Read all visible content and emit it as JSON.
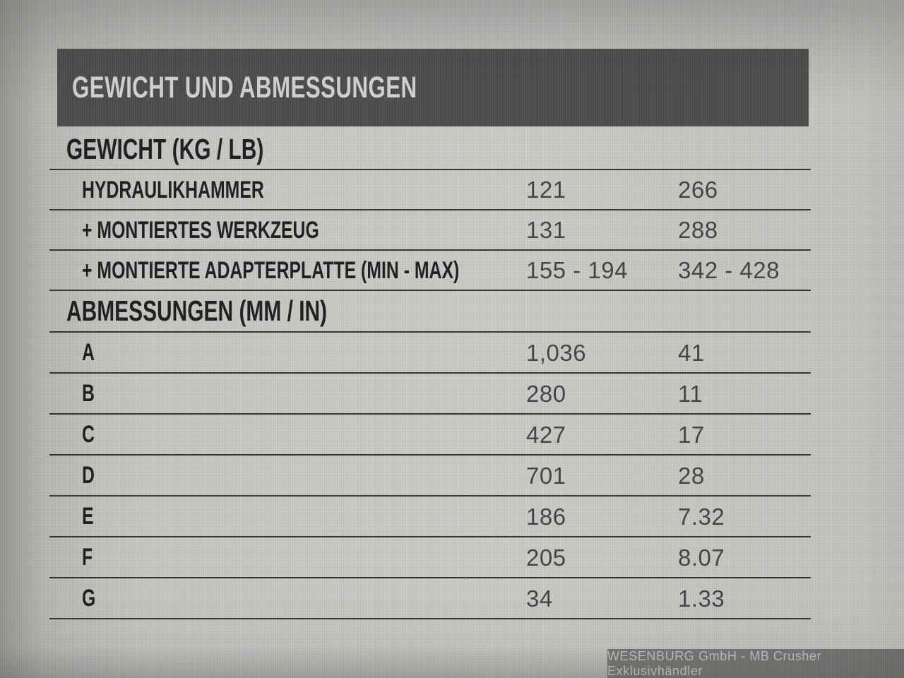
{
  "header": {
    "title": "GEWICHT UND ABMESSUNGEN"
  },
  "table": {
    "sections": [
      {
        "title": "GEWICHT (KG / LB)",
        "rows": [
          {
            "label": "HYDRAULIKHAMMER",
            "metric": "121",
            "imperial": "266"
          },
          {
            "label": "+ MONTIERTES WERKZEUG",
            "metric": "131",
            "imperial": "288"
          },
          {
            "label": "+ MONTIERTE ADAPTERPLATTE (MIN - MAX)",
            "metric": "155 - 194",
            "imperial": "342 - 428"
          }
        ]
      },
      {
        "title": "ABMESSUNGEN (MM / IN)",
        "rows": [
          {
            "label": "A",
            "metric": "1,036",
            "imperial": "41"
          },
          {
            "label": "B",
            "metric": "280",
            "imperial": "11"
          },
          {
            "label": "C",
            "metric": "427",
            "imperial": "17"
          },
          {
            "label": "D",
            "metric": "701",
            "imperial": "28"
          },
          {
            "label": "E",
            "metric": "186",
            "imperial": "7.32"
          },
          {
            "label": "F",
            "metric": "205",
            "imperial": "8.07"
          },
          {
            "label": "G",
            "metric": "34",
            "imperial": "1.33"
          }
        ]
      }
    ]
  },
  "watermark": {
    "text": "WESENBURG GmbH - MB Crusher Exklusivhändler"
  },
  "colors": {
    "header_bg": "#4d4b4a",
    "header_text": "#d3d3d1",
    "label_text": "#1d1c1a",
    "value_text": "#424240",
    "rule": "#34322f",
    "page_bg": "#cbcbc8",
    "watermark_bg": "#70706e",
    "watermark_text": "#c4c4c2"
  }
}
